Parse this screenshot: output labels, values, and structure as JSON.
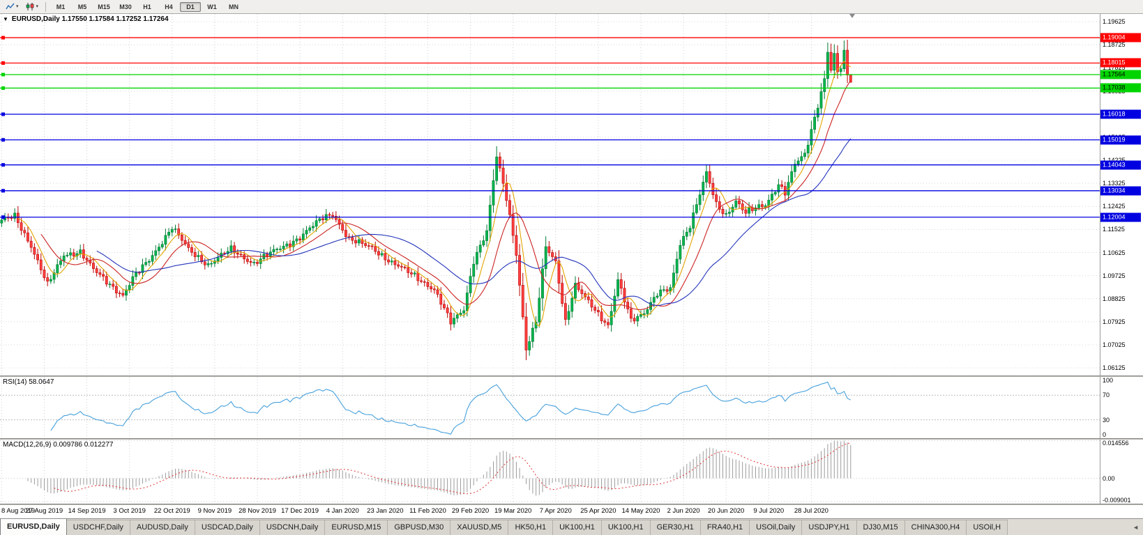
{
  "icons": {
    "collapse_glyph": "▼",
    "caret_glyph": "▾",
    "tab_scroll_glyph": "◄"
  },
  "toolbar": {
    "timeframes": [
      "M1",
      "M5",
      "M15",
      "M30",
      "H1",
      "H4",
      "D1",
      "W1",
      "MN"
    ],
    "active_timeframe": "D1"
  },
  "chart": {
    "header": "EURUSD,Daily 1.17550 1.17584 1.17252 1.17264",
    "symbol": "EURUSD,Daily",
    "open": "1.17550",
    "high": "1.17584",
    "low": "1.17252",
    "close": "1.17264"
  },
  "chart_data": {
    "type": "candlestick",
    "symbol": "EURUSD",
    "period": "Daily",
    "ohlc_current": {
      "open": 1.1755,
      "high": 1.17584,
      "low": 1.17252,
      "close": 1.17264
    },
    "price_axis_ticks": [
      "1.19625",
      "1.18725",
      "1.17825",
      "1.16925",
      "1.16025",
      "1.15125",
      "1.14225",
      "1.13325",
      "1.12425",
      "1.11525",
      "1.10625",
      "1.09725",
      "1.08825",
      "1.07925",
      "1.07025",
      "1.06125"
    ],
    "price_range": {
      "max": 1.1993,
      "min": 1.0583
    },
    "x_labels": [
      "8 Aug 2019",
      "27 Aug 2019",
      "14 Sep 2019",
      "3 Oct 2019",
      "22 Oct 2019",
      "9 Nov 2019",
      "28 Nov 2019",
      "17 Dec 2019",
      "4 Jan 2020",
      "23 Jan 2020",
      "11 Feb 2020",
      "29 Feb 2020",
      "19 Mar 2020",
      "7 Apr 2020",
      "25 Apr 2020",
      "14 May 2020",
      "2 Jun 2020",
      "20 Jun 2020",
      "9 Jul 2020",
      "28 Jul 2020"
    ],
    "bars_total": 260,
    "bars_per_label": 13,
    "bars_width_fraction": 0.775,
    "close_anchors": [
      [
        0,
        1.1185
      ],
      [
        4,
        1.1205
      ],
      [
        9,
        1.109
      ],
      [
        14,
        1.0935
      ],
      [
        19,
        1.1055
      ],
      [
        24,
        1.1065
      ],
      [
        28,
        1.0995
      ],
      [
        33,
        1.094
      ],
      [
        37,
        1.0895
      ],
      [
        40,
        1.096
      ],
      [
        45,
        1.1035
      ],
      [
        52,
        1.116
      ],
      [
        57,
        1.1075
      ],
      [
        63,
        1.1015
      ],
      [
        70,
        1.1075
      ],
      [
        77,
        1.102
      ],
      [
        84,
        1.1075
      ],
      [
        91,
        1.112
      ],
      [
        98,
        1.12
      ],
      [
        101,
        1.1215
      ],
      [
        106,
        1.111
      ],
      [
        113,
        1.1085
      ],
      [
        119,
        1.102
      ],
      [
        126,
        1.0975
      ],
      [
        132,
        1.0915
      ],
      [
        137,
        1.079
      ],
      [
        141,
        1.0845
      ],
      [
        144,
        1.103
      ],
      [
        148,
        1.114
      ],
      [
        151,
        1.144
      ],
      [
        154,
        1.128
      ],
      [
        157,
        1.106
      ],
      [
        160,
        1.068
      ],
      [
        163,
        1.079
      ],
      [
        166,
        1.109
      ],
      [
        169,
        1.103
      ],
      [
        172,
        1.079
      ],
      [
        175,
        1.093
      ],
      [
        180,
        1.086
      ],
      [
        185,
        1.0775
      ],
      [
        188,
        1.095
      ],
      [
        192,
        1.08
      ],
      [
        196,
        1.083
      ],
      [
        200,
        1.09
      ],
      [
        204,
        1.092
      ],
      [
        207,
        1.11
      ],
      [
        210,
        1.117
      ],
      [
        215,
        1.137
      ],
      [
        218,
        1.125
      ],
      [
        221,
        1.121
      ],
      [
        224,
        1.1265
      ],
      [
        227,
        1.1215
      ],
      [
        230,
        1.1235
      ],
      [
        233,
        1.125
      ],
      [
        237,
        1.133
      ],
      [
        239,
        1.1295
      ],
      [
        242,
        1.1405
      ],
      [
        245,
        1.1445
      ],
      [
        248,
        1.159
      ],
      [
        251,
        1.174
      ],
      [
        252,
        1.1845
      ],
      [
        253,
        1.1775
      ],
      [
        254,
        1.183
      ],
      [
        255,
        1.176
      ],
      [
        256,
        1.1785
      ],
      [
        257,
        1.184
      ],
      [
        258,
        1.1755
      ],
      [
        259,
        1.17264
      ]
    ],
    "candle_colors": {
      "up": "#00b44c",
      "up_border": "#007a33",
      "down": "#ff4040",
      "down_border": "#b80000"
    },
    "horizontal_lines": [
      {
        "price": 1.19004,
        "label": "1.19004",
        "color": "#ff0000",
        "text_color": "#ffffff"
      },
      {
        "price": 1.18015,
        "label": "1.18015",
        "color": "#ff0000",
        "text_color": "#ffffff"
      },
      {
        "price": 1.17564,
        "label": "1.17564",
        "color": "#00d400",
        "text_color": "#000000"
      },
      {
        "price": 1.17038,
        "label": "1.17038",
        "color": "#00d400",
        "text_color": "#000000"
      },
      {
        "price": 1.16018,
        "label": "1.16018",
        "color": "#0000e0",
        "text_color": "#ffffff"
      },
      {
        "price": 1.15019,
        "label": "1.15019",
        "color": "#0000e0",
        "text_color": "#ffffff"
      },
      {
        "price": 1.14043,
        "label": "1.14043",
        "color": "#0000e0",
        "text_color": "#ffffff"
      },
      {
        "price": 1.13034,
        "label": "1.13034",
        "color": "#0000e0",
        "text_color": "#ffffff"
      },
      {
        "price": 1.12004,
        "label": "1.12004",
        "color": "#0000e0",
        "text_color": "#ffffff"
      }
    ],
    "moving_averages": [
      {
        "period": 6,
        "color": "#e2a400"
      },
      {
        "period": 13,
        "color": "#cc2222"
      },
      {
        "period": 30,
        "color": "#2233bb"
      }
    ],
    "rsi": {
      "label": "RSI(14) 58.0647",
      "period": 14,
      "value": 58.0647,
      "ticks": [
        "100",
        "70",
        "30",
        "0"
      ],
      "levels": [
        70,
        30
      ],
      "range": {
        "min": 0,
        "max": 100
      },
      "color": "#46a0dc"
    },
    "macd": {
      "label": "MACD(12,26,9) 0.009786 0.012277",
      "fast": 12,
      "slow": 26,
      "signal_period": 9,
      "macd_value": 0.009786,
      "signal_value": 0.012277,
      "ticks": [
        "0.014556",
        "0.00",
        "-0.009001"
      ],
      "range": {
        "max": 0.015,
        "min": -0.0098
      },
      "histogram_color": "#9b9b9b",
      "signal_color": "#e03232"
    }
  },
  "tabs": {
    "items": [
      "EURUSD,Daily",
      "USDCHF,Daily",
      "AUDUSD,Daily",
      "USDCAD,Daily",
      "USDCNH,Daily",
      "EURUSD,M15",
      "GBPUSD,M30",
      "XAUUSD,M5",
      "HK50,H1",
      "UK100,H1",
      "UK100,H1",
      "GER30,H1",
      "FRA40,H1",
      "USOil,Daily",
      "USDJPY,H1",
      "DJ30,M15",
      "CHINA300,H4",
      "USOil,H"
    ],
    "active": "EURUSD,Daily"
  }
}
